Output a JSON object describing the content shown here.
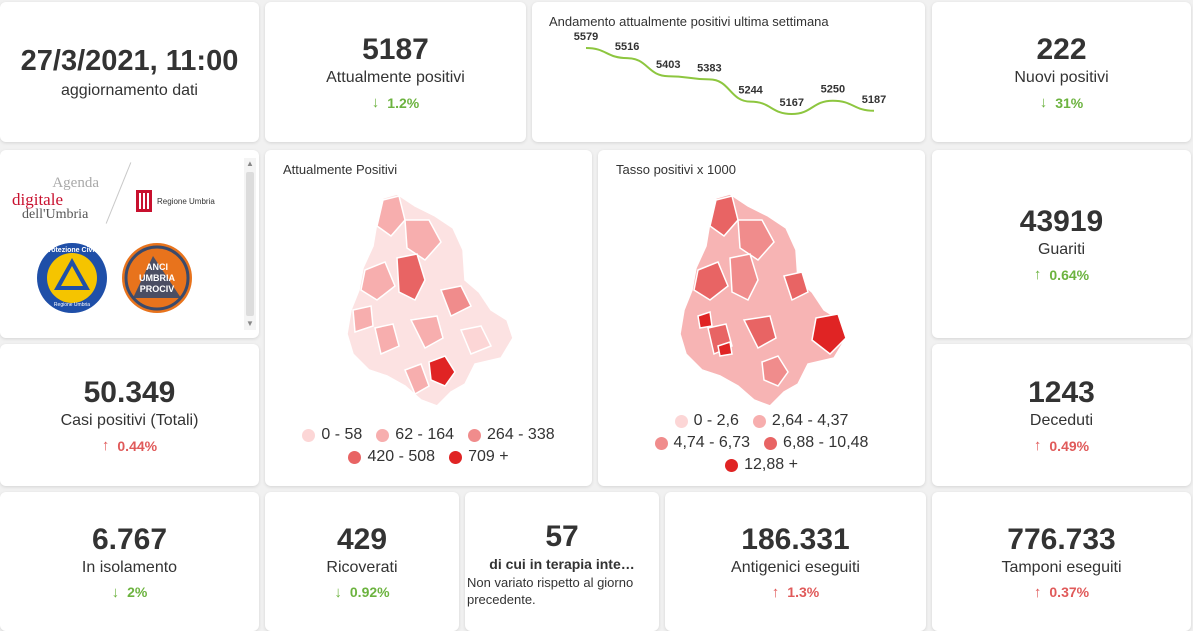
{
  "update": {
    "datetime": "27/3/2021, 11:00",
    "label": "aggiornamento dati"
  },
  "kpis": {
    "attualmente": {
      "value": "5187",
      "label": "Attualmente positivi",
      "trend": "1.2%",
      "trend_dir": "down"
    },
    "nuovi": {
      "value": "222",
      "label": "Nuovi positivi",
      "trend": "31%",
      "trend_dir": "down"
    },
    "guariti": {
      "value": "43919",
      "label": "Guariti",
      "trend": "0.64%",
      "trend_dir": "up-green"
    },
    "deceduti": {
      "value": "1243",
      "label": "Deceduti",
      "trend": "0.49%",
      "trend_dir": "up"
    },
    "casi": {
      "value": "50.349",
      "label": "Casi positivi (Totali)",
      "trend": "0.44%",
      "trend_dir": "up"
    },
    "isolamento": {
      "value": "6.767",
      "label": "In isolamento",
      "trend": "2%",
      "trend_dir": "down"
    },
    "ricoverati": {
      "value": "429",
      "label": "Ricoverati",
      "trend": "0.92%",
      "trend_dir": "down"
    },
    "antigenici": {
      "value": "186.331",
      "label": "Antigenici eseguiti",
      "trend": "1.3%",
      "trend_dir": "up"
    },
    "tamponi": {
      "value": "776.733",
      "label": "Tamponi eseguiti",
      "trend": "0.37%",
      "trend_dir": "up"
    }
  },
  "terapia": {
    "value": "57",
    "label": "di cui in terapia inte…",
    "note": "Non variato rispetto al giorno precedente."
  },
  "logos": {
    "agenda_line1": "Agenda",
    "agenda_line2": "digitale",
    "agenda_line3": "dell'Umbria",
    "regione": "Regione Umbria",
    "protezione_top": "Protezione Civile",
    "protezione_bottom": "Regione Umbria",
    "anci_line1": "ANCI",
    "anci_line2": "UMBRIA",
    "anci_line3": "PROCIV"
  },
  "map1": {
    "title": "Attualmente Positivi",
    "legend": [
      {
        "label": "0 - 58",
        "color": "#fcd6d6"
      },
      {
        "label": "62 - 164",
        "color": "#f7aeae"
      },
      {
        "label": "264 - 338",
        "color": "#f08c8c"
      },
      {
        "label": "420 - 508",
        "color": "#e86464"
      },
      {
        "label": "709 +",
        "color": "#e02424"
      }
    ]
  },
  "map2": {
    "title": "Tasso positivi x 1000",
    "legend": [
      {
        "label": "0 - 2,6",
        "color": "#fcd6d6"
      },
      {
        "label": "2,64 - 4,37",
        "color": "#f7aeae"
      },
      {
        "label": "4,74 - 6,73",
        "color": "#f08c8c"
      },
      {
        "label": "6,88 - 10,48",
        "color": "#e86464"
      },
      {
        "label": "12,88 +",
        "color": "#e02424"
      }
    ]
  },
  "chart_data": {
    "type": "line",
    "title": "Andamento attualmente positivi ultima settimana",
    "values": [
      5579,
      5516,
      5403,
      5383,
      5244,
      5167,
      5250,
      5187
    ],
    "color": "#8dc63f"
  },
  "colors": {
    "green": "#6cb33f",
    "red": "#e05a5a",
    "line": "#8dc63f"
  }
}
